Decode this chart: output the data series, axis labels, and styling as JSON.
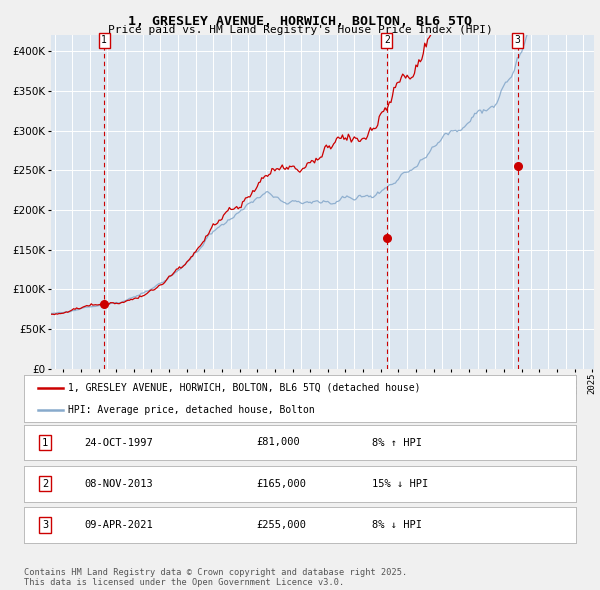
{
  "title": "1, GRESLEY AVENUE, HORWICH, BOLTON, BL6 5TQ",
  "subtitle": "Price paid vs. HM Land Registry's House Price Index (HPI)",
  "bg_color": "#dce6f0",
  "fig_color": "#f0f0f0",
  "price_color": "#cc0000",
  "hpi_color": "#88aacc",
  "grid_color": "#ffffff",
  "dashed_color": "#cc0000",
  "sale_marker_color": "#cc0000",
  "transactions": [
    {
      "date": 1997.82,
      "price": 81000,
      "label": "1"
    },
    {
      "date": 2013.85,
      "price": 165000,
      "label": "2"
    },
    {
      "date": 2021.27,
      "price": 255000,
      "label": "3"
    }
  ],
  "legend_entries": [
    {
      "label": "1, GRESLEY AVENUE, HORWICH, BOLTON, BL6 5TQ (detached house)",
      "color": "#cc0000"
    },
    {
      "label": "HPI: Average price, detached house, Bolton",
      "color": "#88aacc"
    }
  ],
  "table_rows": [
    {
      "num": "1",
      "date": "24-OCT-1997",
      "price": "£81,000",
      "pct": "8% ↑ HPI"
    },
    {
      "num": "2",
      "date": "08-NOV-2013",
      "price": "£165,000",
      "pct": "15% ↓ HPI"
    },
    {
      "num": "3",
      "date": "09-APR-2021",
      "price": "£255,000",
      "pct": "8% ↓ HPI"
    }
  ],
  "footer": "Contains HM Land Registry data © Crown copyright and database right 2025.\nThis data is licensed under the Open Government Licence v3.0.",
  "ylim": [
    0,
    420000
  ],
  "yticks": [
    0,
    50000,
    100000,
    150000,
    200000,
    250000,
    300000,
    350000,
    400000
  ],
  "xlim_start": 1994.8,
  "xlim_end": 2025.6
}
